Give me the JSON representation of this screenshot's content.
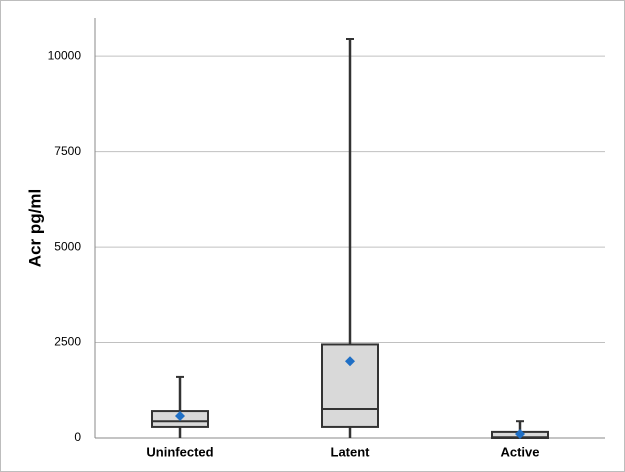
{
  "chart_data": {
    "type": "box",
    "y_label": "Acr pg/ml",
    "categories": [
      "Uninfected",
      "Latent",
      "Active"
    ],
    "min": [
      0,
      0,
      0
    ],
    "q1": [
      290,
      290,
      0
    ],
    "median": [
      440,
      760,
      20
    ],
    "q3": [
      705,
      2450,
      160
    ],
    "max": [
      1600,
      10450,
      440
    ],
    "mean": [
      575,
      2010,
      105
    ],
    "box_color": "#d9d9d9",
    "mean_color": "#1f6fc5",
    "ylim": [
      0,
      11000
    ],
    "yticks": [
      0,
      2500,
      5000,
      7500,
      10000
    ],
    "grid": true
  }
}
